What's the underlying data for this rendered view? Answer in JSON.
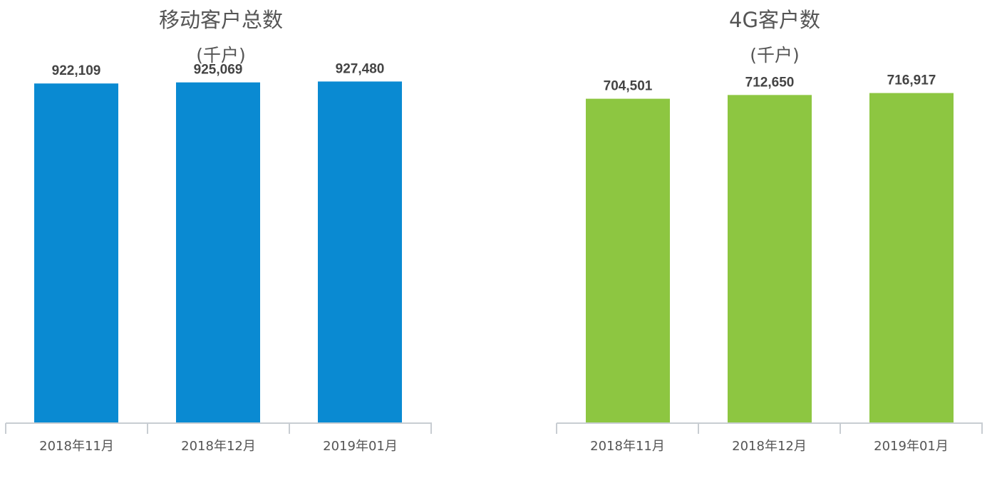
{
  "chart_data": [
    {
      "type": "bar",
      "title": "移动客户总数",
      "subtitle": "(千户)",
      "categories": [
        "2018年11月",
        "2018年12月",
        "2019年01月"
      ],
      "values": [
        922109,
        925069,
        927480
      ],
      "value_labels": [
        "922,109",
        "925,069",
        "927,480"
      ],
      "color": "#0a8ad2",
      "ylim": [
        0,
        1000000
      ],
      "grid": false
    },
    {
      "type": "bar",
      "title": "4G客户数",
      "subtitle": "(千户)",
      "categories": [
        "2018年11月",
        "2018年12月",
        "2019年01月"
      ],
      "values": [
        704501,
        712650,
        716917
      ],
      "value_labels": [
        "704,501",
        "712,650",
        "716,917"
      ],
      "color": "#8dc641",
      "ylim": [
        0,
        800000
      ],
      "grid": false
    }
  ]
}
